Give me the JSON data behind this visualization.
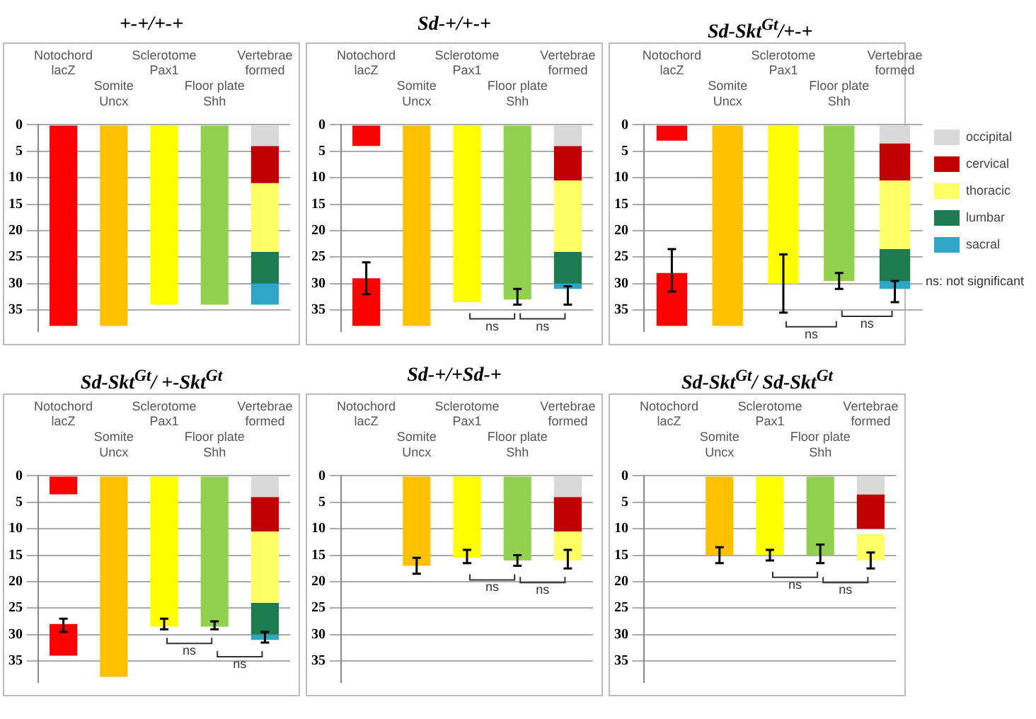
{
  "chart_data": [
    {
      "type": "bar",
      "title": "+-+/+-+",
      "categories": [
        "Notochord\nlacZ",
        "Somite\nUncx",
        "Sclerotome\nPax1",
        "Floor plate\nShh",
        "Vertebrae\nformed"
      ],
      "ylim": [
        39,
        0
      ],
      "yticks": [
        0,
        5,
        10,
        15,
        20,
        25,
        30,
        35
      ],
      "grid": "y",
      "series": [
        {
          "colors": [
            "#ff0000",
            "#ffc000",
            "#ffff00",
            "#92d050",
            null
          ],
          "values": [
            38,
            38,
            34,
            34,
            null
          ],
          "base": [
            0,
            0,
            0,
            0,
            null
          ]
        },
        {
          "color": "#d9d9d9",
          "values": [
            null,
            null,
            null,
            null,
            4
          ],
          "base": [
            null,
            null,
            null,
            null,
            0
          ]
        },
        {
          "color": "#c00000",
          "values": [
            null,
            null,
            null,
            null,
            7
          ],
          "base": [
            null,
            null,
            null,
            null,
            4
          ]
        },
        {
          "color": "#ffff66",
          "values": [
            null,
            null,
            null,
            null,
            13
          ],
          "base": [
            null,
            null,
            null,
            null,
            11
          ]
        },
        {
          "color": "#1e7a4f",
          "values": [
            null,
            null,
            null,
            null,
            6
          ],
          "base": [
            null,
            null,
            null,
            null,
            24
          ]
        },
        {
          "color": "#31a5c8",
          "values": [
            null,
            null,
            null,
            null,
            4
          ],
          "base": [
            null,
            null,
            null,
            null,
            30
          ]
        }
      ]
    },
    {
      "type": "bar",
      "title": "Sd-+/+-+",
      "categories": [
        "Notochord\nlacZ",
        "Somite\nUncx",
        "Sclerotome\nPax1",
        "Floor plate\nShh",
        "Vertebrae\nformed"
      ],
      "ylim": [
        39,
        0
      ],
      "yticks": [
        0,
        5,
        10,
        15,
        20,
        25,
        30,
        35
      ],
      "grid": "y",
      "annotations": [
        "ns",
        "ns"
      ],
      "series": [
        {
          "colors": [
            "#ff0000",
            "#ffc000",
            "#ffff00",
            "#92d050",
            null
          ],
          "values": [
            4,
            38,
            33.5,
            33,
            null
          ],
          "base": [
            0,
            0,
            0,
            0,
            null
          ],
          "errors": [
            null,
            null,
            null,
            [
              31,
              34
            ],
            null
          ]
        },
        {
          "color": "#ff0000",
          "values": [
            -9,
            null,
            null,
            null,
            null
          ],
          "base": [
            38,
            null,
            null,
            null,
            null
          ],
          "errors": [
            [
              26,
              32
            ],
            null,
            null,
            null,
            null
          ]
        },
        {
          "color": "#d9d9d9",
          "values": [
            null,
            null,
            null,
            null,
            4
          ],
          "base": [
            null,
            null,
            null,
            null,
            0
          ]
        },
        {
          "color": "#c00000",
          "values": [
            null,
            null,
            null,
            null,
            6.5
          ],
          "base": [
            null,
            null,
            null,
            null,
            4
          ]
        },
        {
          "color": "#ffff66",
          "values": [
            null,
            null,
            null,
            null,
            13.5
          ],
          "base": [
            null,
            null,
            null,
            null,
            10.5
          ]
        },
        {
          "color": "#1e7a4f",
          "values": [
            null,
            null,
            null,
            null,
            6
          ],
          "base": [
            null,
            null,
            null,
            null,
            24
          ]
        },
        {
          "color": "#31a5c8",
          "values": [
            null,
            null,
            null,
            null,
            1
          ],
          "base": [
            null,
            null,
            null,
            null,
            30
          ],
          "errors": [
            null,
            null,
            null,
            null,
            [
              30.5,
              34
            ]
          ]
        }
      ]
    },
    {
      "type": "bar",
      "title": "Sd-Skt$^{Gt}$/+-+",
      "categories": [
        "Notochord\nlacZ",
        "Somite\nUncx",
        "Sclerotome\nPax1",
        "Floor plate\nShh",
        "Vertebrae\nformed"
      ],
      "ylim": [
        39,
        0
      ],
      "yticks": [
        0,
        5,
        10,
        15,
        20,
        25,
        30,
        35
      ],
      "grid": "y",
      "legend": "right",
      "annotations": [
        "ns",
        "ns",
        "ns: not significant"
      ],
      "series": [
        {
          "colors": [
            "#ff0000",
            "#ffc000",
            "#ffff00",
            "#92d050",
            null
          ],
          "values": [
            3,
            38,
            30,
            29.5,
            null
          ],
          "base": [
            0,
            0,
            0,
            0,
            null
          ],
          "errors": [
            null,
            null,
            [
              24.5,
              35.5
            ],
            [
              28,
              31
            ],
            null
          ]
        },
        {
          "color": "#ff0000",
          "values": [
            -10,
            null,
            null,
            null,
            null
          ],
          "base": [
            38,
            null,
            null,
            null,
            null
          ],
          "errors": [
            [
              23.5,
              31.5
            ],
            null,
            null,
            null,
            null
          ]
        },
        {
          "name": "occipital",
          "color": "#d9d9d9",
          "values": [
            null,
            null,
            null,
            null,
            3.5
          ],
          "base": [
            null,
            null,
            null,
            null,
            0
          ]
        },
        {
          "name": "cervical",
          "color": "#c00000",
          "values": [
            null,
            null,
            null,
            null,
            7
          ],
          "base": [
            null,
            null,
            null,
            null,
            3.5
          ]
        },
        {
          "name": "thoracic",
          "color": "#ffff66",
          "values": [
            null,
            null,
            null,
            null,
            13
          ],
          "base": [
            null,
            null,
            null,
            null,
            10.5
          ]
        },
        {
          "name": "lumbar",
          "color": "#1e7a4f",
          "values": [
            null,
            null,
            null,
            null,
            6
          ],
          "base": [
            null,
            null,
            null,
            null,
            23.5
          ]
        },
        {
          "name": "sacral",
          "color": "#31a5c8",
          "values": [
            null,
            null,
            null,
            null,
            1.5
          ],
          "base": [
            null,
            null,
            null,
            null,
            29.5
          ],
          "errors": [
            null,
            null,
            null,
            null,
            [
              29.5,
              33.5
            ]
          ]
        }
      ]
    },
    {
      "type": "bar",
      "title": "Sd-Skt$^{Gt}$/ +-Skt$^{Gt}$",
      "categories": [
        "Notochord\nlacZ",
        "Somite\nUncx",
        "Sclerotome\nPax1",
        "Floor plate\nShh",
        "Vertebrae\nformed"
      ],
      "ylim": [
        39,
        0
      ],
      "yticks": [
        0,
        5,
        10,
        15,
        20,
        25,
        30,
        35
      ],
      "grid": "y",
      "annotations": [
        "ns",
        "ns"
      ],
      "series": [
        {
          "colors": [
            "#ff0000",
            "#ffc000",
            "#ffff00",
            "#92d050",
            null
          ],
          "values": [
            3.5,
            38,
            28.5,
            28.5,
            null
          ],
          "base": [
            0,
            0,
            0,
            0,
            null
          ],
          "errors": [
            null,
            null,
            [
              27,
              29
            ],
            [
              27.5,
              29
            ],
            null
          ]
        },
        {
          "color": "#ff0000",
          "values": [
            -6,
            null,
            null,
            null,
            null
          ],
          "base": [
            34,
            null,
            null,
            null,
            null
          ],
          "errors": [
            [
              27,
              29.5
            ],
            null,
            null,
            null,
            null
          ]
        },
        {
          "color": "#d9d9d9",
          "values": [
            null,
            null,
            null,
            null,
            4
          ],
          "base": [
            null,
            null,
            null,
            null,
            0
          ]
        },
        {
          "color": "#c00000",
          "values": [
            null,
            null,
            null,
            null,
            6.5
          ],
          "base": [
            null,
            null,
            null,
            null,
            4
          ]
        },
        {
          "color": "#ffff66",
          "values": [
            null,
            null,
            null,
            null,
            13.5
          ],
          "base": [
            null,
            null,
            null,
            null,
            10.5
          ]
        },
        {
          "color": "#1e7a4f",
          "values": [
            null,
            null,
            null,
            null,
            6
          ],
          "base": [
            null,
            null,
            null,
            null,
            24
          ]
        },
        {
          "color": "#31a5c8",
          "values": [
            null,
            null,
            null,
            null,
            1
          ],
          "base": [
            null,
            null,
            null,
            null,
            30
          ],
          "errors": [
            null,
            null,
            null,
            null,
            [
              29.5,
              31.5
            ]
          ]
        }
      ]
    },
    {
      "type": "bar",
      "title": "Sd-+/+Sd-+",
      "categories": [
        "Notochord\nlacZ",
        "Somite\nUncx",
        "Sclerotome\nPax1",
        "Floor plate\nShh",
        "Vertebrae\nformed"
      ],
      "ylim": [
        39,
        0
      ],
      "yticks": [
        0,
        5,
        10,
        15,
        20,
        25,
        30,
        35
      ],
      "grid": "y",
      "annotations": [
        "ns",
        "ns"
      ],
      "series": [
        {
          "colors": [
            "#ff0000",
            "#ffc000",
            "#ffff00",
            "#92d050",
            null
          ],
          "values": [
            null,
            17,
            15.5,
            16,
            null
          ],
          "base": [
            null,
            0,
            0,
            0,
            null
          ],
          "errors": [
            null,
            [
              15.5,
              18.5
            ],
            [
              14,
              16.5
            ],
            [
              15,
              17
            ],
            null
          ]
        },
        {
          "color": "#d9d9d9",
          "values": [
            null,
            null,
            null,
            null,
            4
          ],
          "base": [
            null,
            null,
            null,
            null,
            0
          ]
        },
        {
          "color": "#c00000",
          "values": [
            null,
            null,
            null,
            null,
            6.5
          ],
          "base": [
            null,
            null,
            null,
            null,
            4
          ]
        },
        {
          "color": "#ffff66",
          "values": [
            null,
            null,
            null,
            null,
            5.5
          ],
          "base": [
            null,
            null,
            null,
            null,
            10.5
          ],
          "errors": [
            null,
            null,
            null,
            null,
            [
              14,
              17.5
            ]
          ]
        }
      ]
    },
    {
      "type": "bar",
      "title": "Sd-Skt$^{Gt}$/ Sd-Skt$^{Gt}$",
      "categories": [
        "Notochord\nlacZ",
        "Somite\nUncx",
        "Sclerotome\nPax1",
        "Floor plate\nShh",
        "Vertebrae\nformed"
      ],
      "ylim": [
        39,
        0
      ],
      "yticks": [
        0,
        5,
        10,
        15,
        20,
        25,
        30,
        35
      ],
      "grid": "y",
      "annotations": [
        "ns",
        "ns"
      ],
      "series": [
        {
          "colors": [
            "#ff0000",
            "#ffc000",
            "#ffff00",
            "#92d050",
            null
          ],
          "values": [
            null,
            15,
            15,
            15,
            null
          ],
          "base": [
            null,
            0,
            0,
            0,
            null
          ],
          "errors": [
            null,
            [
              13.5,
              16.5
            ],
            [
              14,
              16
            ],
            [
              13,
              16.5
            ],
            null
          ]
        },
        {
          "color": "#d9d9d9",
          "values": [
            null,
            null,
            null,
            null,
            3.5
          ],
          "base": [
            null,
            null,
            null,
            null,
            0
          ]
        },
        {
          "color": "#c00000",
          "values": [
            null,
            null,
            null,
            null,
            6.5
          ],
          "base": [
            null,
            null,
            null,
            null,
            3.5
          ]
        },
        {
          "color": "#ffff66",
          "values": [
            null,
            null,
            null,
            null,
            5
          ],
          "base": [
            null,
            null,
            null,
            null,
            11
          ],
          "errors": [
            null,
            null,
            null,
            null,
            [
              14.5,
              17.5
            ]
          ]
        }
      ]
    }
  ]
}
